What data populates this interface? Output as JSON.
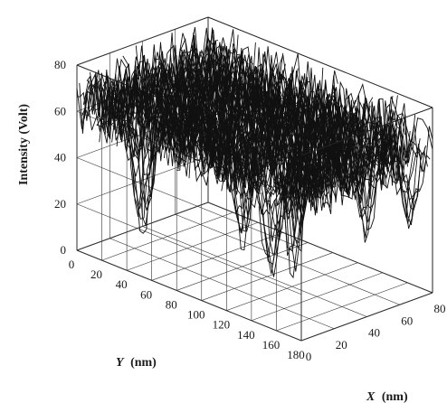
{
  "chart_data": {
    "type": "surface-3d",
    "xlabel": {
      "name": "X",
      "unit": "(nm)"
    },
    "ylabel": {
      "name": "Y",
      "unit": "(nm)"
    },
    "zlabel": "Intensity (Volt)",
    "xlim": [
      0,
      80
    ],
    "ylim": [
      0,
      180
    ],
    "zlim": [
      0,
      80
    ],
    "x_ticks": [
      "0",
      "20",
      "40",
      "60",
      "80"
    ],
    "y_ticks": [
      "0",
      "20",
      "40",
      "60",
      "80",
      "100",
      "120",
      "140",
      "160",
      "180"
    ],
    "z_ticks": [
      "0",
      "20",
      "40",
      "60",
      "80"
    ],
    "grid": true,
    "surface": {
      "typical_intensity_range": [
        50,
        75
      ],
      "peak_intensity": 80,
      "dip_intensity_min": 2,
      "dips": [
        {
          "x": 10,
          "y": 40,
          "depth_to": 5
        },
        {
          "x": 25,
          "y": 100,
          "depth_to": 10
        },
        {
          "x": 30,
          "y": 135,
          "depth_to": 2
        },
        {
          "x": 5,
          "y": 150,
          "depth_to": 15
        },
        {
          "x": 55,
          "y": 160,
          "depth_to": 20
        },
        {
          "x": 70,
          "y": 175,
          "depth_to": 25
        },
        {
          "x": 40,
          "y": 60,
          "depth_to": 30
        }
      ]
    }
  }
}
